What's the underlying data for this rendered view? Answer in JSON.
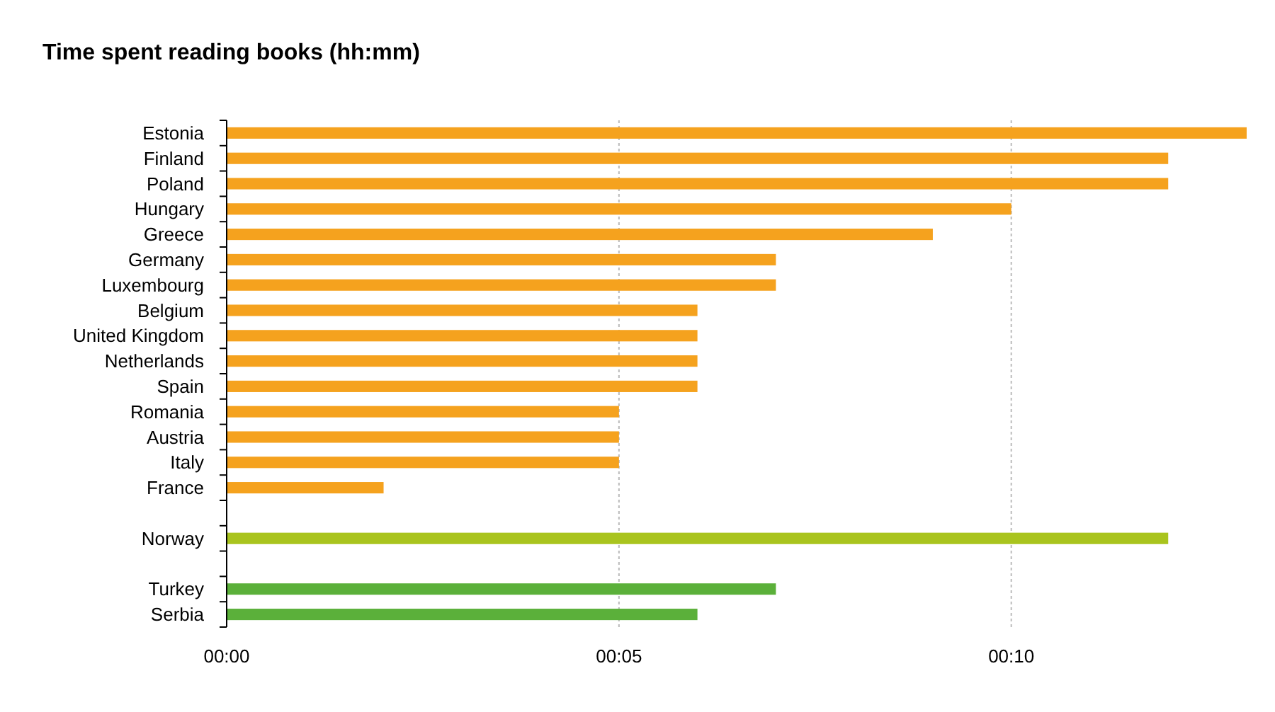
{
  "chart_data": {
    "type": "bar",
    "orientation": "horizontal",
    "title": "Time spent reading books (hh:mm)",
    "categories": [
      "Estonia",
      "Finland",
      "Poland",
      "Hungary",
      "Greece",
      "Germany",
      "Luxembourg",
      "Belgium",
      "United Kingdom",
      "Netherlands",
      "Spain",
      "Romania",
      "Austria",
      "Italy",
      "France",
      null,
      "Norway",
      null,
      "Turkey",
      "Serbia"
    ],
    "values": [
      13,
      12,
      12,
      10,
      9,
      7,
      7,
      6,
      6,
      6,
      6,
      5,
      5,
      5,
      2,
      null,
      12,
      null,
      7,
      6
    ],
    "colors": [
      "#f5a21e",
      "#f5a21e",
      "#f5a21e",
      "#f5a21e",
      "#f5a21e",
      "#f5a21e",
      "#f5a21e",
      "#f5a21e",
      "#f5a21e",
      "#f5a21e",
      "#f5a21e",
      "#f5a21e",
      "#f5a21e",
      "#f5a21e",
      "#f5a21e",
      null,
      "#a9c41e",
      null,
      "#5bb03a",
      "#5bb03a"
    ],
    "xlim": [
      0,
      13
    ],
    "xticks": [
      {
        "value": 0,
        "label": "00:00"
      },
      {
        "value": 5,
        "label": "00:05"
      },
      {
        "value": 10,
        "label": "00:10"
      }
    ],
    "grid": "x"
  }
}
